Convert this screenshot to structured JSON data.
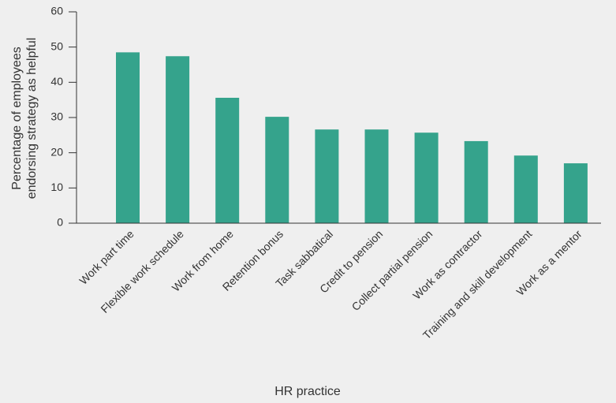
{
  "chart_data": {
    "type": "bar",
    "categories": [
      "Work part time",
      "Flexible work schedule",
      "Work from home",
      "Retention bonus",
      "Task sabbatical",
      "Credit to pension",
      "Collect partial pension",
      "Work as contractor",
      "Training and skill development",
      "Work as a mentor"
    ],
    "values": [
      48.5,
      47.4,
      35.6,
      30.2,
      26.6,
      26.6,
      25.7,
      23.3,
      19.2,
      17
    ],
    "color": "#35a38c",
    "ylim": [
      0,
      60
    ],
    "yticks": [
      0,
      10,
      20,
      30,
      40,
      50,
      60
    ],
    "xlabel": "HR practice",
    "ylabel": [
      "Percentage of employees",
      "endorsing strategy as helpful"
    ],
    "grid": false
  }
}
